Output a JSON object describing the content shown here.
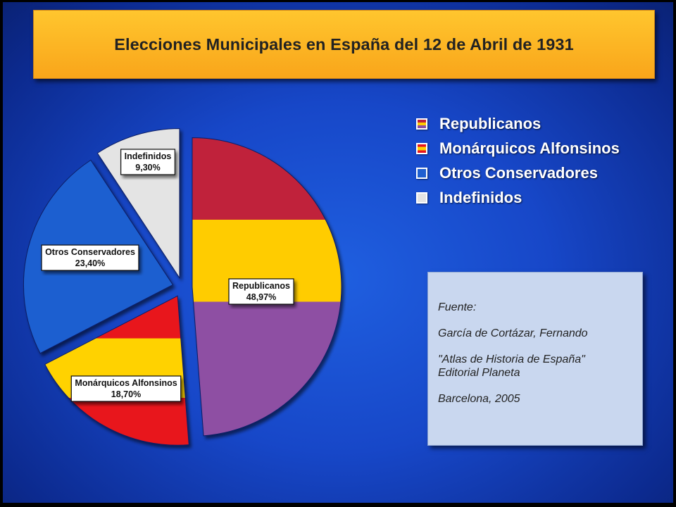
{
  "title": "Elecciones Municipales en España del 12 de Abril de 1931",
  "chart_data": {
    "type": "pie",
    "title": "Elecciones Municipales en España del 12 de Abril de 1931",
    "slices": [
      {
        "name": "Republicanos",
        "value": 48.97,
        "label": "48,97%",
        "colors": [
          "#c0213a",
          "#ffcc00",
          "#8e4fa3"
        ]
      },
      {
        "name": "Monárquicos Alfonsinos",
        "value": 18.7,
        "label": "18,70%",
        "colors": [
          "#e8141e",
          "#ffd200",
          "#e8141e"
        ]
      },
      {
        "name": "Otros Conservadores",
        "value": 23.4,
        "label": "23,40%",
        "colors": [
          "#1f5fd0"
        ]
      },
      {
        "name": "Indefinidos",
        "value": 9.3,
        "label": "9,30%",
        "colors": [
          "#e4e4e4"
        ]
      }
    ],
    "legend_position": "top-right"
  },
  "legend": [
    {
      "label": "Republicanos",
      "swatch": "republicanos"
    },
    {
      "label": "Monárquicos Alfonsinos",
      "swatch": "monarquicos"
    },
    {
      "label": "Otros Conservadores",
      "swatch": "conservadores"
    },
    {
      "label": "Indefinidos",
      "swatch": "indefinidos"
    }
  ],
  "source": {
    "heading": "Fuente:",
    "author": "García de Cortázar, Fernando",
    "book": "\"Atlas de Historia de España\"",
    "publisher": "Editorial Planeta",
    "place": "Barcelona, 2005"
  }
}
